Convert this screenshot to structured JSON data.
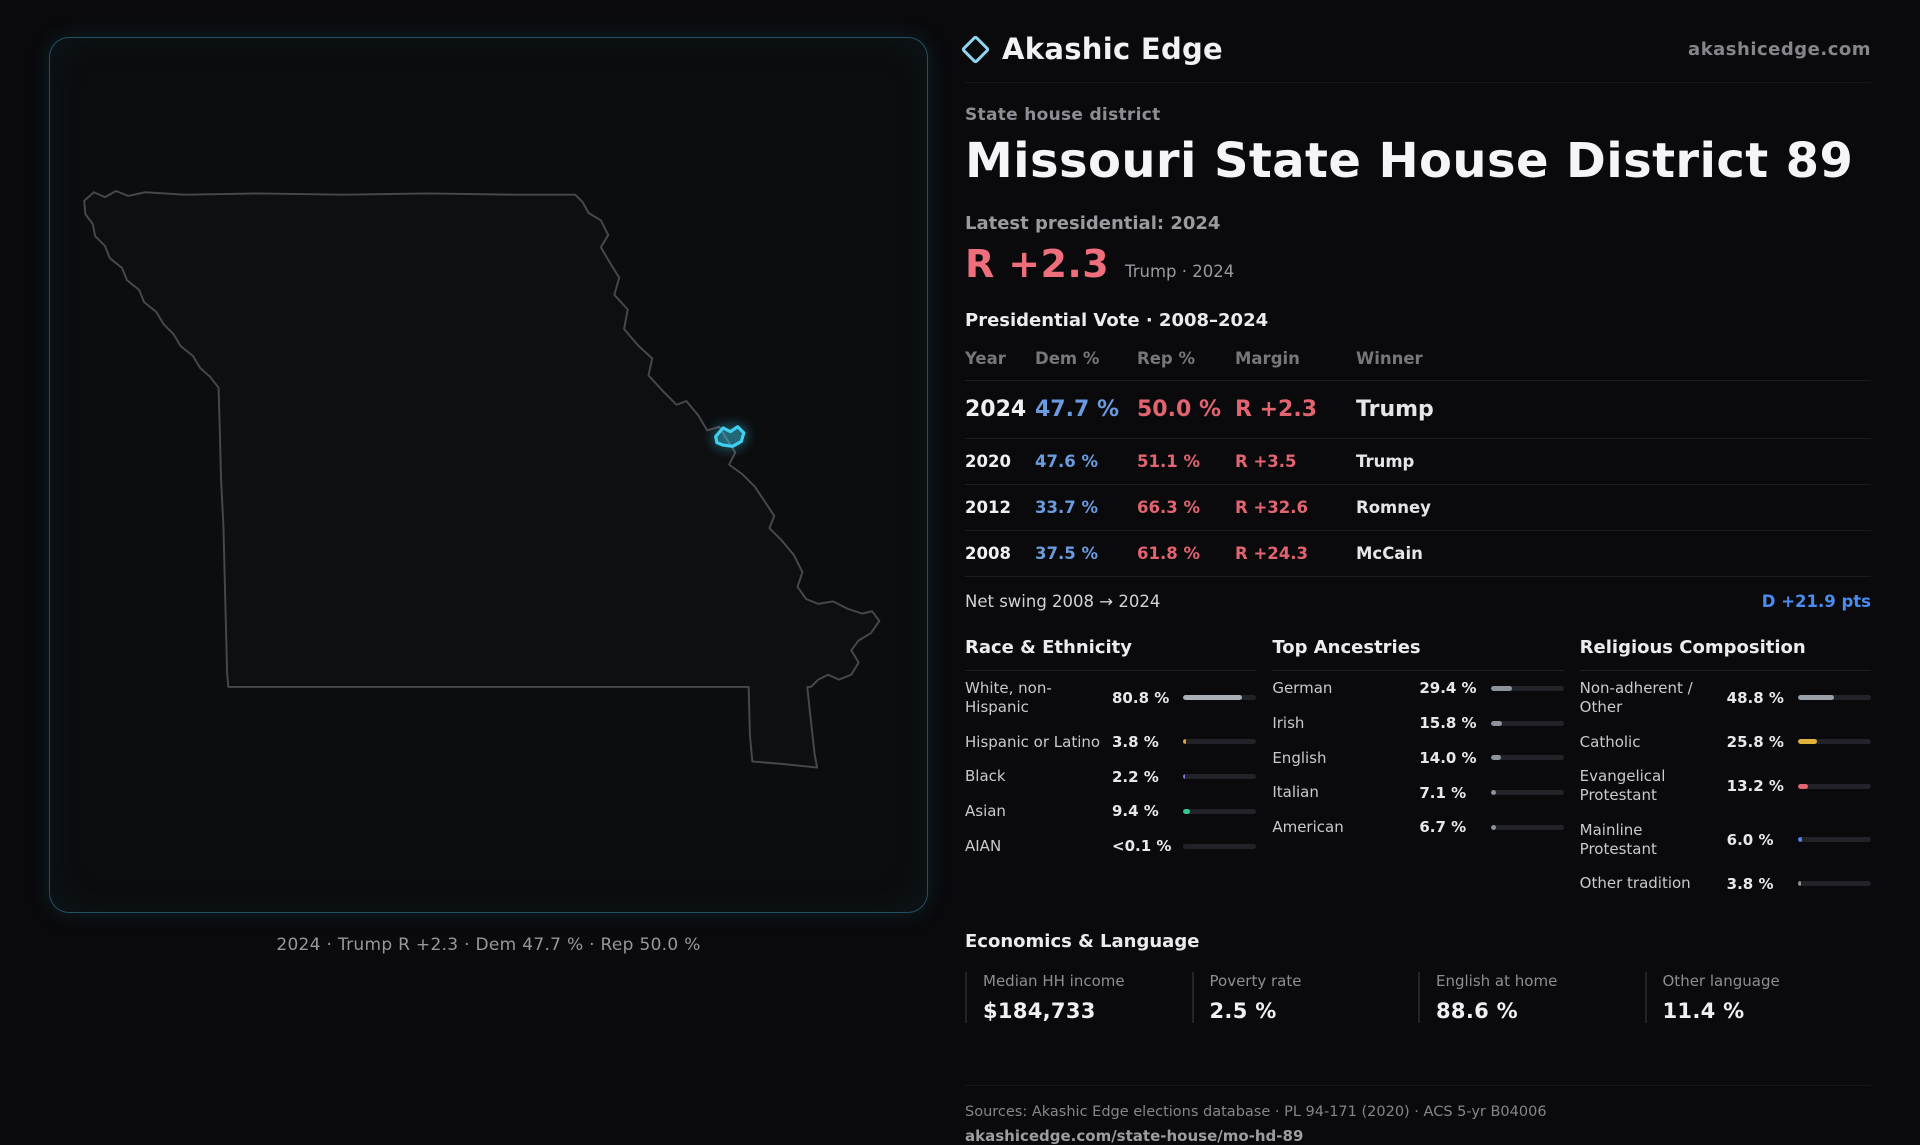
{
  "brand": {
    "name": "Akashic Edge",
    "site": "akashicedge.com"
  },
  "colors": {
    "accent_cyan": "#3fd0f2",
    "rep_red": "#ee6e7b",
    "dem_blue": "#6b9bdf",
    "swing_blue": "#4a8cf0"
  },
  "header": {
    "kicker": "State house district",
    "title": "Missouri State House District 89",
    "latest_label": "Latest presidential: 2024",
    "margin_big": "R +2.3",
    "margin_context": "Trump · 2024"
  },
  "map": {
    "caption": "2024 · Trump R +2.3 · Dem 47.7 % · Rep 50.0 %"
  },
  "vote_table": {
    "title": "Presidential Vote · 2008–2024",
    "columns": [
      "Year",
      "Dem %",
      "Rep %",
      "Margin",
      "Winner"
    ],
    "rows": [
      {
        "year": "2024",
        "dem": "47.7 %",
        "rep": "50.0 %",
        "margin": "R +2.3",
        "winner": "Trump"
      },
      {
        "year": "2020",
        "dem": "47.6 %",
        "rep": "51.1 %",
        "margin": "R +3.5",
        "winner": "Trump"
      },
      {
        "year": "2012",
        "dem": "33.7 %",
        "rep": "66.3 %",
        "margin": "R +32.6",
        "winner": "Romney"
      },
      {
        "year": "2008",
        "dem": "37.5 %",
        "rep": "61.8 %",
        "margin": "R +24.3",
        "winner": "McCain"
      }
    ]
  },
  "net_swing": {
    "label": "Net swing 2008 → 2024",
    "value": "D +21.9 pts"
  },
  "demographics": {
    "race": {
      "title": "Race & Ethnicity",
      "items": [
        {
          "label": "White, non-Hispanic",
          "value": "80.8 %",
          "pct": 80.8,
          "color": "#aab0b8"
        },
        {
          "label": "Hispanic or Latino",
          "value": "3.8 %",
          "pct": 3.8,
          "color": "#e3a43c"
        },
        {
          "label": "Black",
          "value": "2.2 %",
          "pct": 2.2,
          "color": "#7b78e8"
        },
        {
          "label": "Asian",
          "value": "9.4 %",
          "pct": 9.4,
          "color": "#31c98e"
        },
        {
          "label": "AIAN",
          "value": "<0.1 %",
          "pct": 0,
          "color": "#9aa0a8"
        }
      ]
    },
    "ancestries": {
      "title": "Top Ancestries",
      "items": [
        {
          "label": "German",
          "value": "29.4 %",
          "pct": 29.4,
          "color": "#8e939b"
        },
        {
          "label": "Irish",
          "value": "15.8 %",
          "pct": 15.8,
          "color": "#8e939b"
        },
        {
          "label": "English",
          "value": "14.0 %",
          "pct": 14.0,
          "color": "#8e939b"
        },
        {
          "label": "Italian",
          "value": "7.1 %",
          "pct": 7.1,
          "color": "#8e939b"
        },
        {
          "label": "American",
          "value": "6.7 %",
          "pct": 6.7,
          "color": "#8e939b"
        }
      ]
    },
    "religion": {
      "title": "Religious Composition",
      "items": [
        {
          "label": "Non-adherent / Other",
          "value": "48.8 %",
          "pct": 48.8,
          "color": "#9aa0a8"
        },
        {
          "label": "Catholic",
          "value": "25.8 %",
          "pct": 25.8,
          "color": "#e0b33c"
        },
        {
          "label": "Evangelical Protestant",
          "value": "13.2 %",
          "pct": 13.2,
          "color": "#e06674"
        },
        {
          "label": "Mainline Protestant",
          "value": "6.0 %",
          "pct": 6.0,
          "color": "#4f82e0"
        },
        {
          "label": "Other tradition",
          "value": "3.8 %",
          "pct": 3.8,
          "color": "#8e939b"
        }
      ]
    }
  },
  "economics": {
    "title": "Economics & Language",
    "stats": [
      {
        "label": "Median HH income",
        "value": "$184,733"
      },
      {
        "label": "Poverty rate",
        "value": "2.5 %"
      },
      {
        "label": "English at home",
        "value": "88.6 %"
      },
      {
        "label": "Other language",
        "value": "11.4 %"
      }
    ]
  },
  "footer": {
    "sources": "Sources: Akashic Edge elections database · PL 94-171 (2020) · ACS 5-yr B04006",
    "url": "akashicedge.com/state-house/mo-hd-89"
  }
}
